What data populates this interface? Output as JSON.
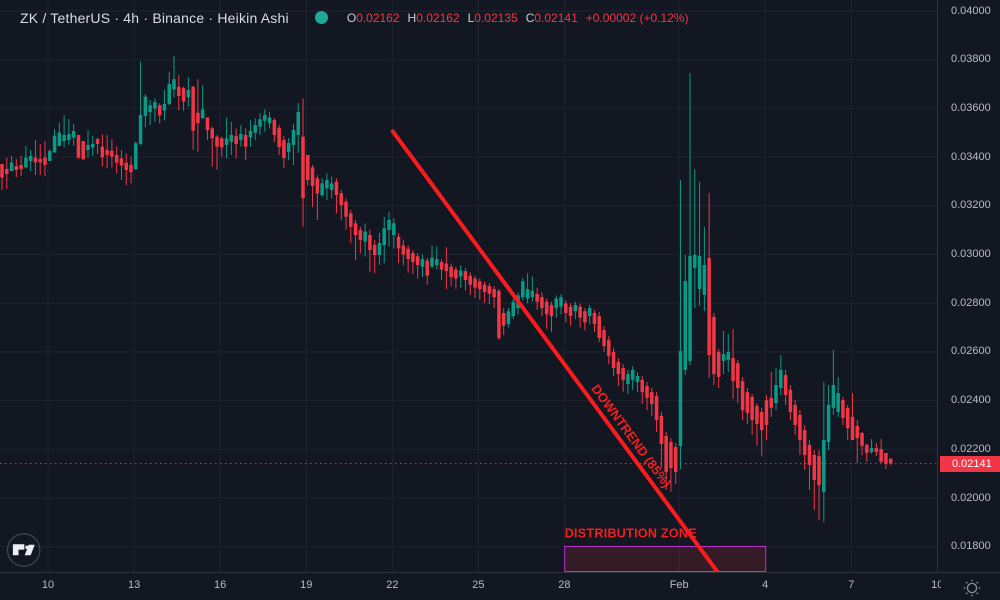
{
  "colors": {
    "background": "#131722",
    "grid": "#1e2330",
    "axis_separator": "#2e323d",
    "axis_text": "#b8bcc8",
    "title_text": "#d8dce5",
    "up_candle": "#0a9b87",
    "down_candle": "#f23645",
    "price_line": "#f23645",
    "price_badge": "#f23645",
    "trendline": "#fa1c1c",
    "zone_border": "#bd2fd0",
    "zone_fill": "rgba(242,54,69,0.15)",
    "annotation_text": "#f51d1d",
    "legend_status_dot": "#1fa896"
  },
  "legend": {
    "symbol_title": "ZK / TetherUS · 4h · Binance · Heikin Ashi",
    "ohlc_items": [
      {
        "label": "O",
        "value": "0.02162"
      },
      {
        "label": "H",
        "value": "0.02162"
      },
      {
        "label": "L",
        "value": "0.02135"
      },
      {
        "label": "C",
        "value": "0.02141"
      }
    ],
    "change": "+0.00002 (+0.12%)"
  },
  "price_axis": {
    "tick_labels": [
      "0.04000",
      "0.03800",
      "0.03600",
      "0.03400",
      "0.03200",
      "0.03000",
      "0.02800",
      "0.02600",
      "0.02400",
      "0.02200",
      "0.02000",
      "0.01800"
    ],
    "tick_prices": [
      0.04,
      0.038,
      0.036,
      0.034,
      0.032,
      0.03,
      0.028,
      0.026,
      0.024,
      0.022,
      0.02,
      0.018
    ],
    "current_price": {
      "label": "0.02141",
      "value": 0.02141
    }
  },
  "time_axis": {
    "ticks": [
      {
        "label": "10",
        "index": 9.63
      },
      {
        "label": "13",
        "index": 27.65
      },
      {
        "label": "16",
        "index": 45.65
      },
      {
        "label": "19",
        "index": 63.67
      },
      {
        "label": "22",
        "index": 81.7
      },
      {
        "label": "25",
        "index": 99.7
      },
      {
        "label": "28",
        "index": 117.7
      },
      {
        "label": "Feb",
        "index": 141.73
      },
      {
        "label": "4",
        "index": 159.73
      },
      {
        "label": "7",
        "index": 177.75
      },
      {
        "label": "10",
        "index": 195.75
      }
    ]
  },
  "annotations": {
    "trendline": {
      "label": "DOWNTREND (85%)",
      "start": {
        "index": 81.78,
        "price": 0.03506
      },
      "end": {
        "index": 149.62,
        "price": 0.017
      },
      "label_anchor": {
        "index": 131.7,
        "price": 0.02255
      },
      "label_angle_deg": 53.6
    },
    "distribution_zone": {
      "label": "DISTRIBUTION ZONE",
      "start_index": 117.77,
      "end_index": 159.84,
      "top_price": 0.01801,
      "bottom_price": 0.01698
    }
  },
  "chart_data": {
    "type": "candlestick",
    "style": "Heikin Ashi",
    "interval": "4h",
    "title": "ZK / TetherUS · 4h · Binance · Heikin Ashi",
    "ylim": [
      0.01697,
      0.04045
    ],
    "price_step": 0.002,
    "grid": true,
    "series_name": "ZK / TetherUS",
    "columns": [
      "open",
      "high",
      "low",
      "close"
    ],
    "candles": [
      [
        0.03372,
        0.03372,
        0.03265,
        0.03316
      ],
      [
        0.03351,
        0.03398,
        0.03269,
        0.03331
      ],
      [
        0.03343,
        0.03405,
        0.03343,
        0.03378
      ],
      [
        0.03363,
        0.03392,
        0.03318,
        0.03347
      ],
      [
        0.03368,
        0.03405,
        0.03322,
        0.03351
      ],
      [
        0.03357,
        0.03446,
        0.03357,
        0.03398
      ],
      [
        0.03384,
        0.03429,
        0.03343,
        0.03405
      ],
      [
        0.03398,
        0.0347,
        0.03326,
        0.03378
      ],
      [
        0.03392,
        0.03454,
        0.03326,
        0.03378
      ],
      [
        0.03398,
        0.03466,
        0.03322,
        0.03368
      ],
      [
        0.03384,
        0.03433,
        0.03384,
        0.03425
      ],
      [
        0.03419,
        0.03515,
        0.03419,
        0.03487
      ],
      [
        0.03446,
        0.03542,
        0.03446,
        0.03501
      ],
      [
        0.03466,
        0.03573,
        0.03439,
        0.03491
      ],
      [
        0.0347,
        0.03556,
        0.0345,
        0.03495
      ],
      [
        0.0348,
        0.03536,
        0.03446,
        0.03507
      ],
      [
        0.03491,
        0.03491,
        0.03392,
        0.03398
      ],
      [
        0.03466,
        0.03466,
        0.03388,
        0.03392
      ],
      [
        0.03429,
        0.03511,
        0.03398,
        0.0345
      ],
      [
        0.03439,
        0.03487,
        0.03405,
        0.03454
      ],
      [
        0.03474,
        0.0348,
        0.03413,
        0.03454
      ],
      [
        0.03443,
        0.03494,
        0.03361,
        0.03399
      ],
      [
        0.03429,
        0.03491,
        0.03354,
        0.03409
      ],
      [
        0.03426,
        0.03473,
        0.03358,
        0.03402
      ],
      [
        0.03409,
        0.03443,
        0.03333,
        0.03377
      ],
      [
        0.03395,
        0.03429,
        0.03306,
        0.03365
      ],
      [
        0.03377,
        0.03416,
        0.03285,
        0.03347
      ],
      [
        0.03368,
        0.03402,
        0.03292,
        0.03338
      ],
      [
        0.03351,
        0.03463,
        0.03347,
        0.03457
      ],
      [
        0.03454,
        0.03792,
        0.0345,
        0.03573
      ],
      [
        0.03569,
        0.03659,
        0.03522,
        0.03648
      ],
      [
        0.03585,
        0.03634,
        0.03531,
        0.03613
      ],
      [
        0.03599,
        0.03641,
        0.03545,
        0.03626
      ],
      [
        0.03613,
        0.03621,
        0.03539,
        0.03572
      ],
      [
        0.03591,
        0.03676,
        0.03552,
        0.03618
      ],
      [
        0.03618,
        0.03751,
        0.03613,
        0.037
      ],
      [
        0.03678,
        0.03815,
        0.03646,
        0.0372
      ],
      [
        0.03689,
        0.03737,
        0.03593,
        0.03651
      ],
      [
        0.03683,
        0.03689,
        0.03591,
        0.03628
      ],
      [
        0.03646,
        0.03728,
        0.03607,
        0.03676
      ],
      [
        0.03689,
        0.03692,
        0.03429,
        0.03508
      ],
      [
        0.03582,
        0.0372,
        0.03422,
        0.03539
      ],
      [
        0.03559,
        0.03696,
        0.03559,
        0.03596
      ],
      [
        0.03563,
        0.03563,
        0.0347,
        0.03511
      ],
      [
        0.03518,
        0.03525,
        0.03361,
        0.03477
      ],
      [
        0.03484,
        0.03491,
        0.03347,
        0.03443
      ],
      [
        0.03477,
        0.03484,
        0.03402,
        0.0344
      ],
      [
        0.0345,
        0.03563,
        0.03395,
        0.03477
      ],
      [
        0.03463,
        0.03545,
        0.03409,
        0.03491
      ],
      [
        0.03487,
        0.03518,
        0.03395,
        0.03454
      ],
      [
        0.0347,
        0.03532,
        0.03443,
        0.03495
      ],
      [
        0.03491,
        0.03518,
        0.03388,
        0.03443
      ],
      [
        0.03481,
        0.03552,
        0.03443,
        0.03508
      ],
      [
        0.035,
        0.03559,
        0.0347,
        0.03532
      ],
      [
        0.03525,
        0.0358,
        0.03491,
        0.03555
      ],
      [
        0.03549,
        0.03596,
        0.03504,
        0.03573
      ],
      [
        0.03539,
        0.03586,
        0.03518,
        0.03563
      ],
      [
        0.03552,
        0.03561,
        0.03462,
        0.03491
      ],
      [
        0.0352,
        0.03532,
        0.03409,
        0.03441
      ],
      [
        0.0347,
        0.03487,
        0.03355,
        0.03396
      ],
      [
        0.03421,
        0.03478,
        0.03388,
        0.03458
      ],
      [
        0.0345,
        0.03536,
        0.03368,
        0.03511
      ],
      [
        0.03491,
        0.03622,
        0.03417,
        0.03585
      ],
      [
        0.03484,
        0.03641,
        0.03114,
        0.03231
      ],
      [
        0.03409,
        0.03409,
        0.03285,
        0.03306
      ],
      [
        0.03358,
        0.03368,
        0.03194,
        0.03281
      ],
      [
        0.03313,
        0.03326,
        0.03142,
        0.03251
      ],
      [
        0.03244,
        0.03313,
        0.03237,
        0.03292
      ],
      [
        0.03272,
        0.03333,
        0.03224,
        0.03306
      ],
      [
        0.03265,
        0.0332,
        0.03231,
        0.03292
      ],
      [
        0.03299,
        0.03313,
        0.03169,
        0.03244
      ],
      [
        0.03251,
        0.03265,
        0.03142,
        0.03203
      ],
      [
        0.03217,
        0.03231,
        0.03101,
        0.03155
      ],
      [
        0.03169,
        0.03183,
        0.03046,
        0.03114
      ],
      [
        0.03128,
        0.03142,
        0.02977,
        0.0308
      ],
      [
        0.03101,
        0.03114,
        0.03005,
        0.0306
      ],
      [
        0.03053,
        0.03128,
        0.02991,
        0.03094
      ],
      [
        0.0308,
        0.03101,
        0.02929,
        0.03018
      ],
      [
        0.03039,
        0.0306,
        0.02923,
        0.02998
      ],
      [
        0.02998,
        0.03088,
        0.02957,
        0.03047
      ],
      [
        0.03039,
        0.03155,
        0.02964,
        0.03108
      ],
      [
        0.03101,
        0.03176,
        0.03032,
        0.03142
      ],
      [
        0.0308,
        0.03149,
        0.03025,
        0.03128
      ],
      [
        0.03073,
        0.03087,
        0.02964,
        0.03025
      ],
      [
        0.03037,
        0.03061,
        0.02956,
        0.03
      ],
      [
        0.03024,
        0.03037,
        0.02926,
        0.02981
      ],
      [
        0.03006,
        0.03018,
        0.0292,
        0.02969
      ],
      [
        0.02993,
        0.03006,
        0.02901,
        0.02956
      ],
      [
        0.0295,
        0.03,
        0.02907,
        0.02981
      ],
      [
        0.02975,
        0.02987,
        0.02876,
        0.02913
      ],
      [
        0.0295,
        0.03037,
        0.02944,
        0.02987
      ],
      [
        0.02956,
        0.03033,
        0.02938,
        0.02981
      ],
      [
        0.02969,
        0.02981,
        0.02895,
        0.02938
      ],
      [
        0.02963,
        0.0303,
        0.02858,
        0.02932
      ],
      [
        0.0295,
        0.02963,
        0.0287,
        0.02907
      ],
      [
        0.02938,
        0.0295,
        0.02858,
        0.02901
      ],
      [
        0.0291,
        0.02956,
        0.02864,
        0.02934
      ],
      [
        0.02932,
        0.02944,
        0.02852,
        0.02895
      ],
      [
        0.02913,
        0.02926,
        0.02833,
        0.02876
      ],
      [
        0.02901,
        0.02913,
        0.02821,
        0.02864
      ],
      [
        0.02889,
        0.02901,
        0.02815,
        0.02858
      ],
      [
        0.02876,
        0.02889,
        0.02802,
        0.02846
      ],
      [
        0.0287,
        0.02883,
        0.02796,
        0.02839
      ],
      [
        0.02858,
        0.0287,
        0.0278,
        0.02825
      ],
      [
        0.02851,
        0.02858,
        0.0265,
        0.02656
      ],
      [
        0.0276,
        0.0278,
        0.02669,
        0.02708
      ],
      [
        0.02715,
        0.0278,
        0.02701,
        0.02767
      ],
      [
        0.02747,
        0.02819,
        0.02734,
        0.02806
      ],
      [
        0.0278,
        0.02845,
        0.02754,
        0.02832
      ],
      [
        0.02825,
        0.02903,
        0.02812,
        0.0289
      ],
      [
        0.02819,
        0.02923,
        0.02799,
        0.02858
      ],
      [
        0.02825,
        0.0291,
        0.02806,
        0.02851
      ],
      [
        0.02838,
        0.02864,
        0.02773,
        0.02806
      ],
      [
        0.02825,
        0.02845,
        0.02747,
        0.0278
      ],
      [
        0.02806,
        0.02819,
        0.02695,
        0.02754
      ],
      [
        0.02793,
        0.02806,
        0.02682,
        0.02747
      ],
      [
        0.0278,
        0.02832,
        0.0274,
        0.02819
      ],
      [
        0.02786,
        0.02838,
        0.02754,
        0.02825
      ],
      [
        0.02799,
        0.02812,
        0.02721,
        0.0276
      ],
      [
        0.02786,
        0.02799,
        0.02708,
        0.02747
      ],
      [
        0.02767,
        0.02806,
        0.02734,
        0.02793
      ],
      [
        0.02786,
        0.02799,
        0.02701,
        0.0274
      ],
      [
        0.02767,
        0.0278,
        0.02689,
        0.02721
      ],
      [
        0.02747,
        0.02793,
        0.02715,
        0.0278
      ],
      [
        0.0276,
        0.02773,
        0.02682,
        0.02715
      ],
      [
        0.02747,
        0.02764,
        0.02641,
        0.02657
      ],
      [
        0.0269,
        0.02706,
        0.026,
        0.02624
      ],
      [
        0.02649,
        0.02665,
        0.0255,
        0.02583
      ],
      [
        0.026,
        0.02616,
        0.02501,
        0.02534
      ],
      [
        0.02559,
        0.02575,
        0.0246,
        0.02509
      ],
      [
        0.02534,
        0.0255,
        0.02435,
        0.02485
      ],
      [
        0.02468,
        0.02526,
        0.02427,
        0.02509
      ],
      [
        0.02485,
        0.02542,
        0.02444,
        0.02526
      ],
      [
        0.02476,
        0.02517,
        0.02435,
        0.02501
      ],
      [
        0.02485,
        0.02501,
        0.02386,
        0.02435
      ],
      [
        0.0246,
        0.02476,
        0.02361,
        0.02411
      ],
      [
        0.02435,
        0.02452,
        0.02337,
        0.02386
      ],
      [
        0.02419,
        0.02435,
        0.02271,
        0.0232
      ],
      [
        0.02337,
        0.02353,
        0.02123,
        0.02222
      ],
      [
        0.02255,
        0.02271,
        0.02033,
        0.02107
      ],
      [
        0.0223,
        0.02246,
        0.02025,
        0.02123
      ],
      [
        0.02209,
        0.02226,
        0.02057,
        0.02107
      ],
      [
        0.02214,
        0.03306,
        0.02119,
        0.02604
      ],
      [
        0.02526,
        0.02998,
        0.02505,
        0.02891
      ],
      [
        0.02563,
        0.03745,
        0.02546,
        0.02994
      ],
      [
        0.02945,
        0.03351,
        0.0278,
        0.02998
      ],
      [
        0.02858,
        0.03298,
        0.02789,
        0.02994
      ],
      [
        0.02834,
        0.03113,
        0.02768,
        0.02957
      ],
      [
        0.02986,
        0.03253,
        0.02493,
        0.02587
      ],
      [
        0.02743,
        0.0276,
        0.02464,
        0.02509
      ],
      [
        0.026,
        0.02612,
        0.02452,
        0.02497
      ],
      [
        0.02563,
        0.02686,
        0.02509,
        0.02591
      ],
      [
        0.02567,
        0.02674,
        0.02517,
        0.026
      ],
      [
        0.02575,
        0.02694,
        0.02407,
        0.0248
      ],
      [
        0.02554,
        0.02567,
        0.0239,
        0.02452
      ],
      [
        0.0248,
        0.02497,
        0.0232,
        0.02361
      ],
      [
        0.02435,
        0.02452,
        0.02304,
        0.02349
      ],
      [
        0.02415,
        0.02427,
        0.02259,
        0.0232
      ],
      [
        0.02378,
        0.0239,
        0.02214,
        0.02304
      ],
      [
        0.02353,
        0.0237,
        0.02172,
        0.02279
      ],
      [
        0.02402,
        0.02423,
        0.02238,
        0.023
      ],
      [
        0.02411,
        0.02517,
        0.02333,
        0.0237
      ],
      [
        0.0239,
        0.02534,
        0.02361,
        0.02464
      ],
      [
        0.02452,
        0.02587,
        0.02423,
        0.02526
      ],
      [
        0.02505,
        0.02526,
        0.02382,
        0.02423
      ],
      [
        0.02444,
        0.02464,
        0.0232,
        0.02353
      ],
      [
        0.02382,
        0.02402,
        0.02259,
        0.023
      ],
      [
        0.02341,
        0.02361,
        0.02177,
        0.02238
      ],
      [
        0.02279,
        0.023,
        0.02115,
        0.02177
      ],
      [
        0.02218,
        0.02238,
        0.02033,
        0.02136
      ],
      [
        0.02177,
        0.02197,
        0.01951,
        0.02074
      ],
      [
        0.02172,
        0.02197,
        0.0191,
        0.02053
      ],
      [
        0.02025,
        0.02476,
        0.01901,
        0.02238
      ],
      [
        0.0223,
        0.02464,
        0.02197,
        0.02382
      ],
      [
        0.0237,
        0.02608,
        0.02341,
        0.02464
      ],
      [
        0.02353,
        0.02497,
        0.02333,
        0.02431
      ],
      [
        0.02402,
        0.02415,
        0.023,
        0.02329
      ],
      [
        0.0237,
        0.02382,
        0.02238,
        0.02287
      ],
      [
        0.02333,
        0.02431,
        0.02238,
        0.02238
      ],
      [
        0.02296,
        0.0232,
        0.02144,
        0.02246
      ],
      [
        0.02267,
        0.02271,
        0.02177,
        0.02214
      ],
      [
        0.02218,
        0.02222,
        0.02148,
        0.02185
      ],
      [
        0.02189,
        0.02242,
        0.02181,
        0.02205
      ],
      [
        0.02205,
        0.02226,
        0.02172,
        0.02189
      ],
      [
        0.02201,
        0.02242,
        0.02144,
        0.02148
      ],
      [
        0.02185,
        0.02185,
        0.02119,
        0.0214
      ],
      [
        0.02162,
        0.02162,
        0.02135,
        0.02141
      ]
    ]
  },
  "footer": {
    "tradingview_logo": "tradingview-logo",
    "settings_icon": "gear"
  }
}
